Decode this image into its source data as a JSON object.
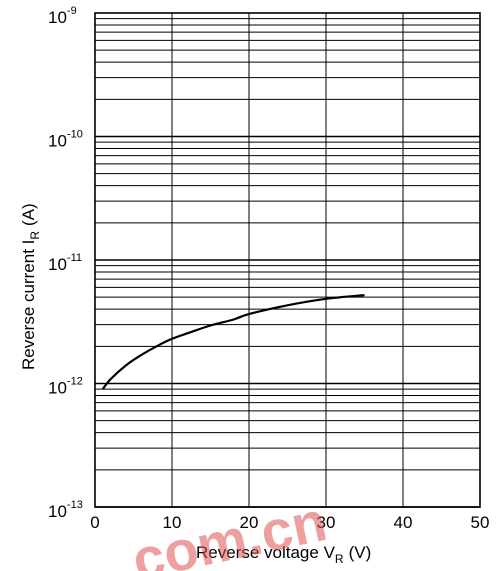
{
  "chart_data": {
    "type": "line",
    "title": "",
    "xlabel": {
      "text": "Reverse voltage  V",
      "sub": "R",
      "unit": "(V)"
    },
    "ylabel": {
      "text": "Reverse current  I",
      "sub": "R",
      "unit": "(A)"
    },
    "xlim": [
      0,
      50
    ],
    "x_ticks": [
      0,
      10,
      20,
      30,
      40,
      50
    ],
    "x_tick_labels": [
      "0",
      "10",
      "20",
      "30",
      "40",
      "50"
    ],
    "ylim": [
      1e-13,
      1e-09
    ],
    "y_scale": "log",
    "y_ticks": [
      {
        "base": "10",
        "exp": "-9"
      },
      {
        "base": "10",
        "exp": "-10"
      },
      {
        "base": "10",
        "exp": "-11"
      },
      {
        "base": "10",
        "exp": "-12"
      },
      {
        "base": "10",
        "exp": "-13"
      }
    ],
    "grid": true,
    "series": [
      {
        "x": [
          1,
          2,
          4,
          6,
          8,
          10,
          12,
          15,
          18,
          20,
          25,
          30,
          35
        ],
        "y": [
          9e-13,
          1.08e-12,
          1.4e-12,
          1.7e-12,
          2e-12,
          2.3e-12,
          2.55e-12,
          2.95e-12,
          3.3e-12,
          3.65e-12,
          4.3e-12,
          4.85e-12,
          5.2e-12
        ]
      }
    ]
  },
  "watermark": {
    "text": ".com.cn",
    "color": "#e05050"
  }
}
